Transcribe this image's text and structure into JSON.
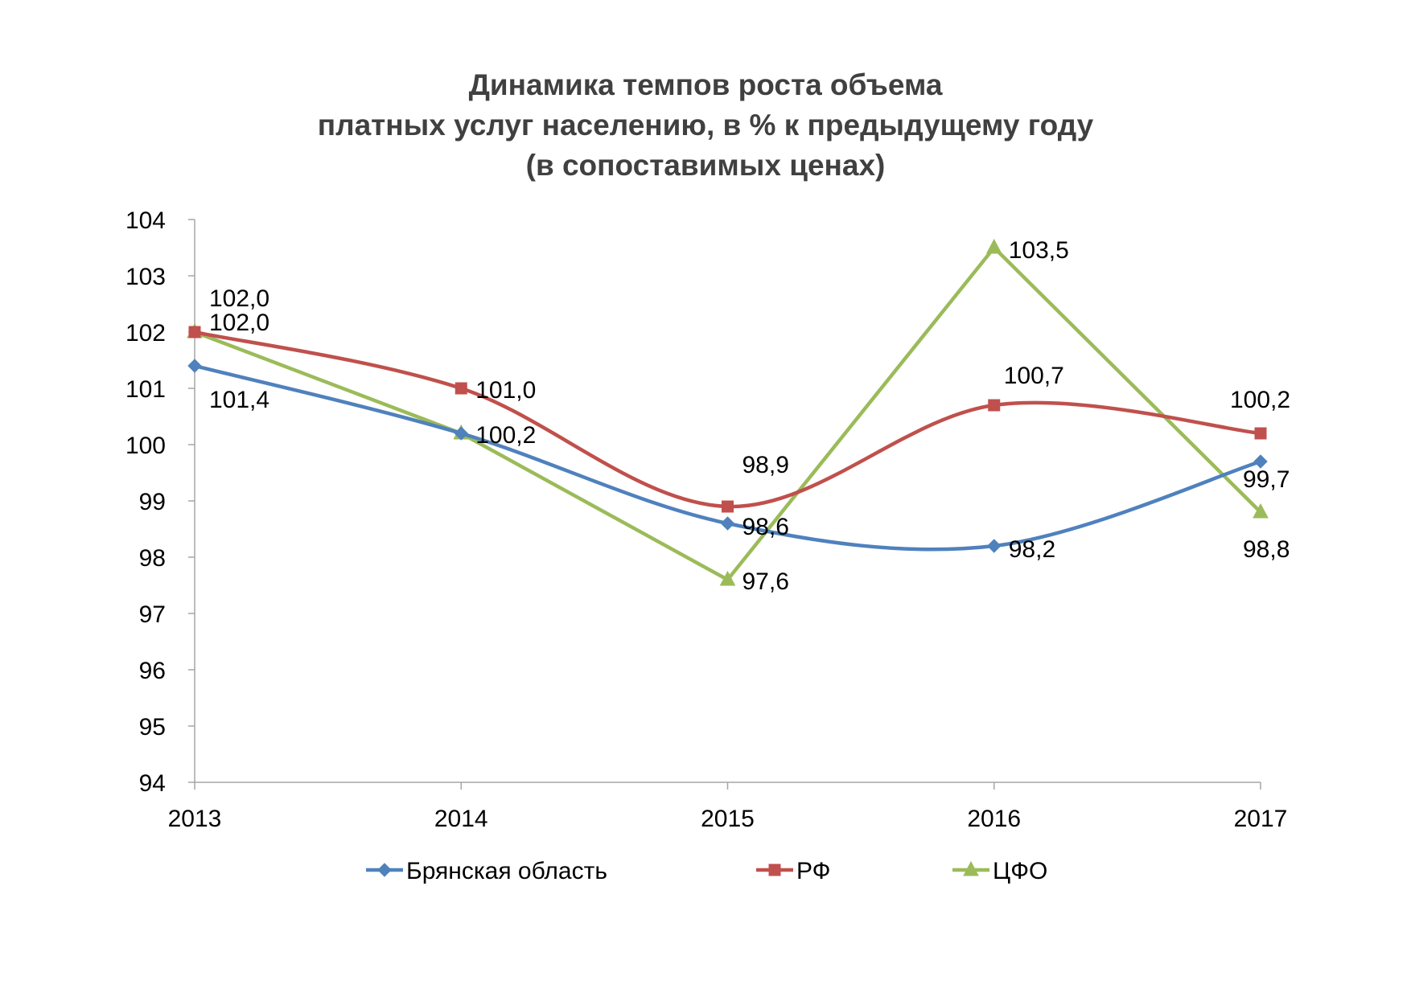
{
  "chart_data": {
    "type": "line",
    "title_lines": [
      "Динамика темпов роста объема",
      "платных услуг населению, в % к предыдущему году",
      "(в сопоставимых ценах)"
    ],
    "xlabel": "",
    "ylabel": "",
    "categories": [
      "2013",
      "2014",
      "2015",
      "2016",
      "2017"
    ],
    "ylim": [
      94,
      104
    ],
    "yticks": [
      "94",
      "95",
      "96",
      "97",
      "98",
      "99",
      "100",
      "101",
      "102",
      "103",
      "104"
    ],
    "grid": false,
    "legend_position": "bottom",
    "series": [
      {
        "name": "Брянская область",
        "color": "#4F81BD",
        "marker": "diamond",
        "smooth": true,
        "values": [
          101.4,
          100.2,
          98.6,
          98.2,
          99.7
        ],
        "labels": [
          "101,4",
          "",
          "98,6",
          "98,2",
          "99,7"
        ]
      },
      {
        "name": "РФ",
        "color": "#C0504D",
        "marker": "square",
        "smooth": true,
        "values": [
          102.0,
          101.0,
          98.9,
          100.7,
          100.2
        ],
        "labels": [
          "102,0",
          "101,0",
          "98,9",
          "100,7",
          "100,2"
        ]
      },
      {
        "name": "ЦФО",
        "color": "#9BBB59",
        "marker": "triangle",
        "smooth": false,
        "values": [
          102.0,
          100.2,
          97.6,
          103.5,
          98.8
        ],
        "labels": [
          "102,0",
          "100,2",
          "97,6",
          "103,5",
          "98,8"
        ]
      }
    ]
  }
}
